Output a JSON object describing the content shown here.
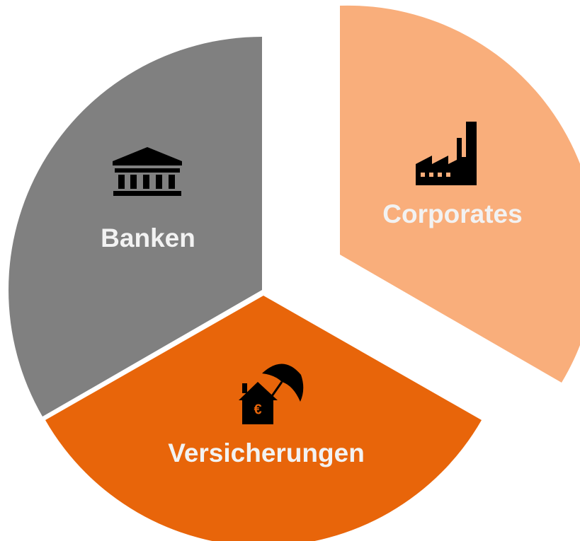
{
  "nodes": [
    {
      "label": "Corporates"
    },
    {
      "label": "Banken"
    },
    {
      "label": "Versicherungen"
    }
  ]
}
